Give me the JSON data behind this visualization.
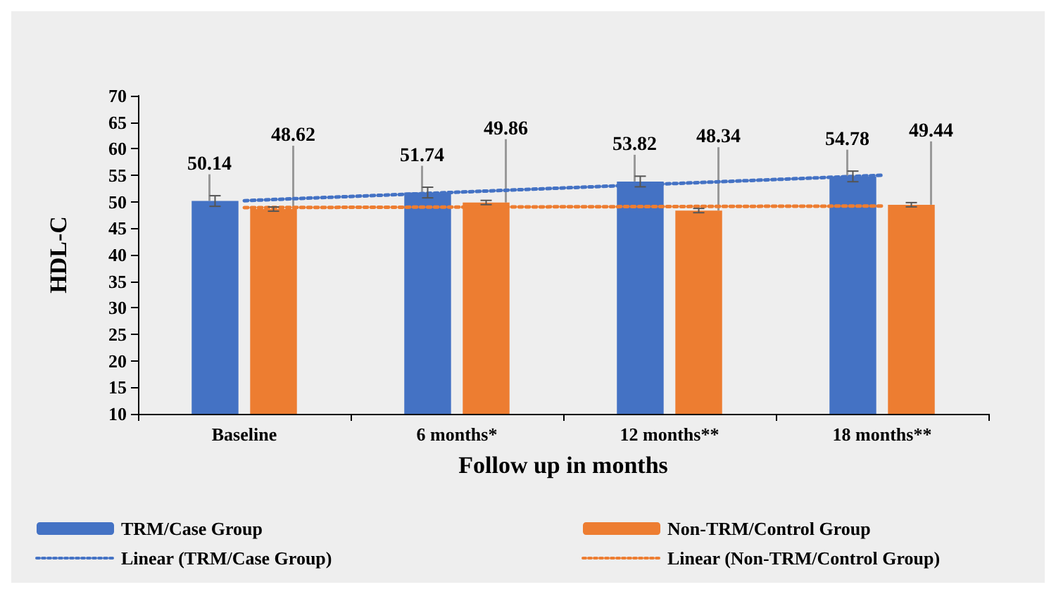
{
  "chart_data": {
    "type": "bar",
    "xlabel": "Follow up in months",
    "ylabel": "HDL-C",
    "categories": [
      "Baseline",
      "6 months*",
      "12 months**",
      "18 months**"
    ],
    "series": [
      {
        "name": "TRM/Case Group",
        "color": "#4472c4",
        "values": [
          50.14,
          51.74,
          53.82,
          54.78
        ],
        "value_labels": [
          "50.14",
          "51.74",
          "53.82",
          "54.78"
        ],
        "errors": [
          1,
          1,
          1,
          1
        ]
      },
      {
        "name": "Non-TRM/Control Group",
        "color": "#ed7d31",
        "values": [
          48.62,
          49.86,
          48.34,
          49.44
        ],
        "value_labels": [
          "48.62",
          "49.86",
          "48.34",
          "49.44"
        ],
        "errors": [
          0.4,
          0.4,
          0.4,
          0.4
        ]
      },
      {
        "name": "Linear (TRM/Case Group)",
        "type": "line",
        "color": "#4472c4",
        "x": [
          "Baseline",
          "6 months*",
          "12 months**",
          "18 months**"
        ],
        "values": [
          50.2,
          51.8,
          53.4,
          55.0
        ],
        "line_style": "dotted",
        "marker": "none"
      },
      {
        "name": "Linear (Non-TRM/Control Group)",
        "type": "line",
        "color": "#ed7d31",
        "x": [
          "Baseline",
          "6 months*",
          "12 months**",
          "18 months**"
        ],
        "values": [
          48.9,
          49.0,
          49.1,
          49.2
        ],
        "line_style": "dotted",
        "marker": "none"
      }
    ],
    "ylim": [
      10,
      70
    ],
    "yticks": [
      10,
      15,
      20,
      25,
      30,
      35,
      40,
      45,
      50,
      55,
      60,
      65,
      70
    ],
    "grid": false,
    "legend": "bottom"
  }
}
